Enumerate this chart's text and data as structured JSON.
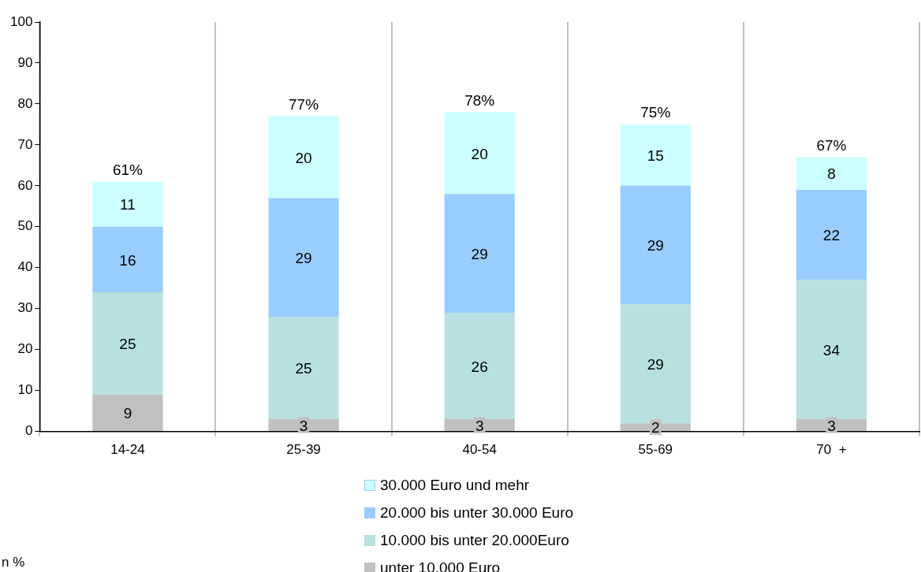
{
  "chart_data": {
    "type": "bar",
    "stacked": true,
    "categories": [
      "14-24",
      "25-39",
      "40-54",
      "55-69",
      "70  +"
    ],
    "series": [
      {
        "name": "unter 10.000 Euro",
        "color": "#c0c0c0",
        "values": [
          9,
          3,
          3,
          2,
          3
        ]
      },
      {
        "name": "10.000 bis unter 20.000Euro",
        "color": "#b8e0e0",
        "values": [
          25,
          25,
          26,
          29,
          34
        ]
      },
      {
        "name": "20.000 bis unter 30.000 Euro",
        "color": "#99ccff",
        "values": [
          16,
          29,
          29,
          29,
          22
        ]
      },
      {
        "name": "30.000 Euro und mehr",
        "color": "#ccffff",
        "values": [
          11,
          20,
          20,
          15,
          8
        ]
      }
    ],
    "ylim": [
      0,
      100
    ],
    "yticks": [
      0,
      10,
      20,
      30,
      40,
      50,
      60,
      70,
      80,
      90,
      100
    ],
    "grid": "x",
    "legend": "bottom",
    "data_labels": true,
    "totals": [
      "61%",
      "77%",
      "78%",
      "75%",
      "67%"
    ],
    "annotations": [
      "n %"
    ]
  }
}
